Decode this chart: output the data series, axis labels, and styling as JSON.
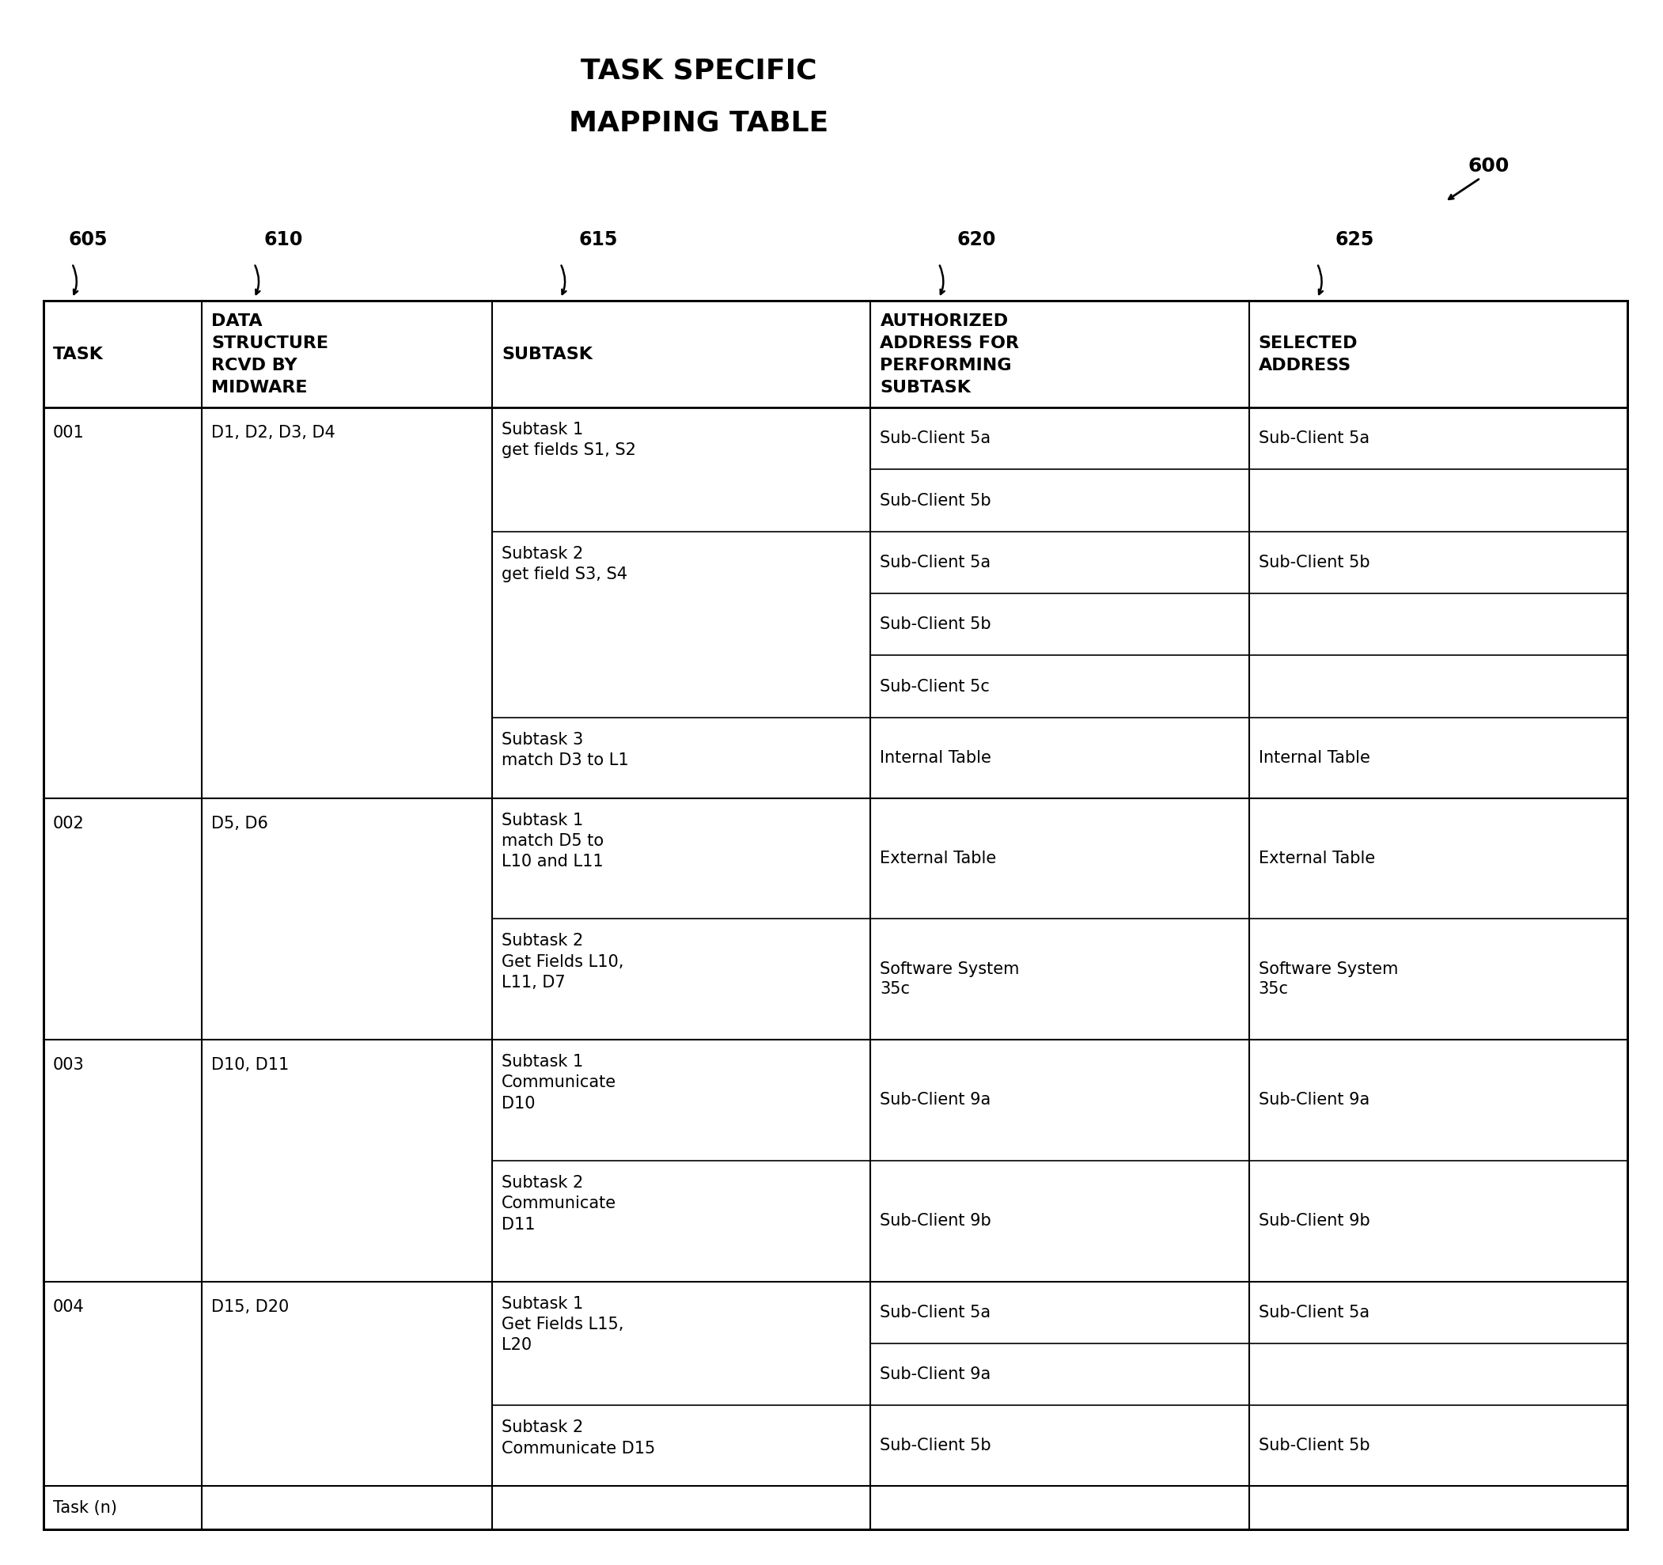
{
  "title_line1": "TASK SPECIFIC",
  "title_line2": "MAPPING TABLE",
  "title_fontsize": 26,
  "background_color": "#ffffff",
  "columns": [
    "TASK",
    "DATA\nSTRUCTURE\nRCVD BY\nMIDWARE",
    "SUBTASK",
    "AUTHORIZED\nADDRESS FOR\nPERFORMING\nSUBTASK",
    "SELECTED\nADDRESS"
  ],
  "col_labels": [
    "605",
    "610",
    "615",
    "620",
    "625"
  ],
  "col_props": [
    0.09,
    0.165,
    0.215,
    0.215,
    0.215
  ],
  "ref_label": "600",
  "rows": [
    {
      "task": "001",
      "data_structure": "D1, D2, D3, D4",
      "subtasks": [
        {
          "subtask": "Subtask 1\nget fields S1, S2",
          "auth_addresses": [
            "Sub-Client 5a",
            "Sub-Client 5b"
          ],
          "selected": "Sub-Client 5a"
        },
        {
          "subtask": "Subtask 2\nget field S3, S4",
          "auth_addresses": [
            "Sub-Client 5a",
            "Sub-Client 5b",
            "Sub-Client 5c"
          ],
          "selected": "Sub-Client 5b"
        },
        {
          "subtask": "Subtask 3\nmatch D3 to L1",
          "auth_addresses": [
            "Internal Table"
          ],
          "selected": "Internal Table"
        }
      ]
    },
    {
      "task": "002",
      "data_structure": "D5, D6",
      "subtasks": [
        {
          "subtask": "Subtask 1\nmatch D5 to\nL10 and L11",
          "auth_addresses": [
            "External Table"
          ],
          "selected": "External Table"
        },
        {
          "subtask": "Subtask 2\nGet Fields L10,\nL11, D7",
          "auth_addresses": [
            "Software System\n35c"
          ],
          "selected": "Software System\n35c"
        }
      ]
    },
    {
      "task": "003",
      "data_structure": "D10, D11",
      "subtasks": [
        {
          "subtask": "Subtask 1\nCommunicate\nD10",
          "auth_addresses": [
            "Sub-Client 9a"
          ],
          "selected": "Sub-Client 9a"
        },
        {
          "subtask": "Subtask 2\nCommunicate\nD11",
          "auth_addresses": [
            "Sub-Client 9b"
          ],
          "selected": "Sub-Client 9b"
        }
      ]
    },
    {
      "task": "004",
      "data_structure": "D15, D20",
      "subtasks": [
        {
          "subtask": "Subtask 1\nGet Fields L15,\nL20",
          "auth_addresses": [
            "Sub-Client 5a",
            "Sub-Client 9a"
          ],
          "selected": "Sub-Client 5a"
        },
        {
          "subtask": "Subtask 2\nCommunicate D15",
          "auth_addresses": [
            "Sub-Client 5b"
          ],
          "selected": "Sub-Client 5b"
        }
      ]
    },
    {
      "task": "Task (n)",
      "data_structure": "",
      "subtasks": []
    }
  ]
}
